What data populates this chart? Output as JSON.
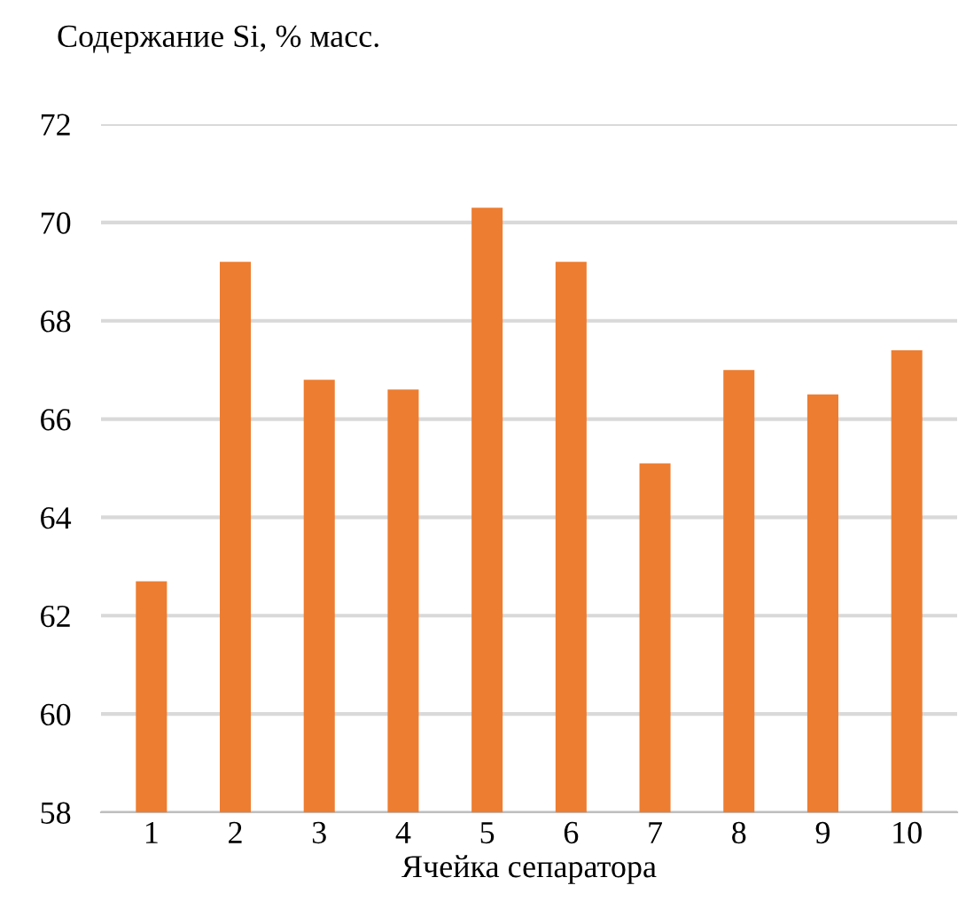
{
  "chart_data": {
    "type": "bar",
    "ylabel": "Содержание Si, % масс.",
    "xlabel": "Ячейка сепаратора",
    "categories": [
      "1",
      "2",
      "3",
      "4",
      "5",
      "6",
      "7",
      "8",
      "9",
      "10"
    ],
    "values": [
      62.7,
      69.2,
      66.8,
      66.6,
      70.3,
      69.2,
      65.1,
      67.0,
      66.5,
      67.4
    ],
    "color": "#ed7d31",
    "ylim": [
      58,
      72
    ],
    "yticks": [
      58,
      60,
      62,
      64,
      66,
      68,
      70,
      72
    ],
    "grid": "y"
  }
}
